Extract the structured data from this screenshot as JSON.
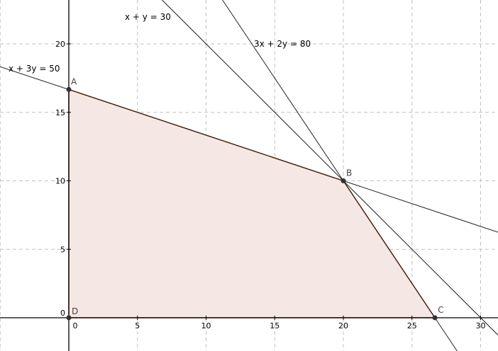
{
  "chart_data": {
    "type": "line",
    "title": "",
    "xlabel": "",
    "ylabel": "",
    "xlim": [
      -5,
      31.3
    ],
    "ylim": [
      -2.4,
      23.2
    ],
    "grid": true,
    "x_ticks": [
      "0",
      "5",
      "10",
      "15",
      "20",
      "25",
      "30"
    ],
    "x_tick_values": [
      0,
      5,
      10,
      15,
      20,
      25,
      30
    ],
    "y_ticks": [
      "0",
      "5",
      "10",
      "15",
      "20"
    ],
    "y_tick_values": [
      0,
      5,
      10,
      15,
      20
    ],
    "lines": [
      {
        "label": "x + 3y = 50",
        "a": 1,
        "b": 3,
        "c": 50
      },
      {
        "label": "x + y = 30",
        "a": 1,
        "b": 1,
        "c": 30
      },
      {
        "label": "3x + 2y = 80",
        "a": 3,
        "b": 2,
        "c": 80
      }
    ],
    "feasible_region": {
      "vertices": [
        {
          "name": "A",
          "x": 0,
          "y": 16.67
        },
        {
          "name": "B",
          "x": 20,
          "y": 10
        },
        {
          "name": "C",
          "x": 26.67,
          "y": 0
        },
        {
          "name": "D",
          "x": 0,
          "y": 0
        }
      ],
      "fill_color": "#f5e8e4",
      "edge_color": "#993300"
    },
    "point_color": "#333333",
    "grid_color": "#c0c0c0"
  }
}
